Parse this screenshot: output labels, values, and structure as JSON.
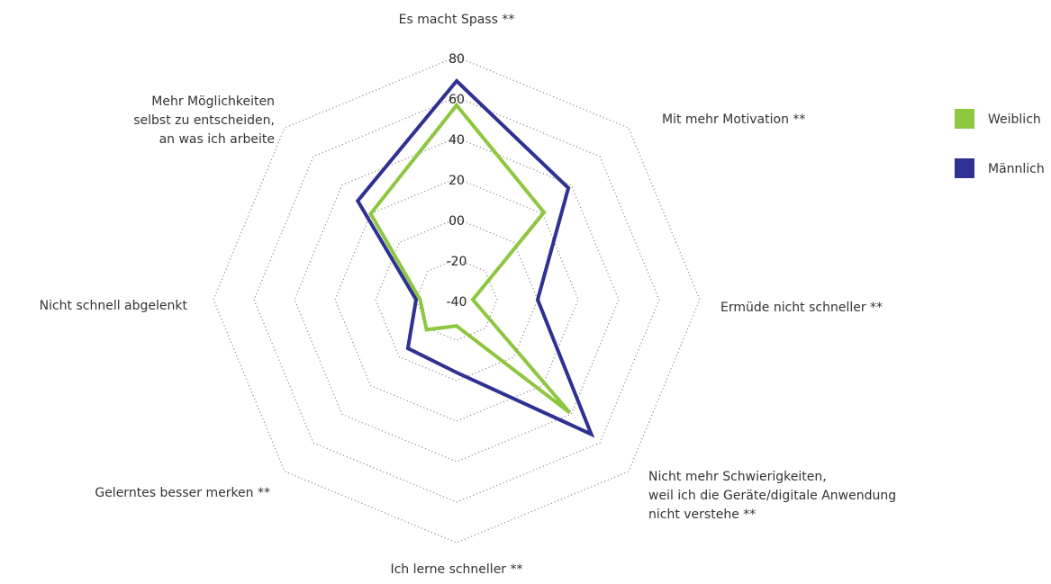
{
  "chart_data": {
    "type": "radar",
    "categories": [
      "Es macht Spass **",
      "Mit mehr Motivation **",
      "Ermüde nicht schneller **",
      "Nicht mehr Schwierigkeiten,\nweil ich die Geräte/digitale Anwendung\nnicht verstehe **",
      "Ich lerne schneller **",
      "Gelerntes besser merken **",
      "Nicht schnell abgelenkt",
      "Mehr Möglichkeiten\nselbst zu entscheiden,\nan was ich arbeite"
    ],
    "series": [
      {
        "name": "Weiblich",
        "color": "#8dc63f",
        "values": [
          56,
          21,
          -32,
          39,
          -27,
          -19,
          -22,
          20
        ]
      },
      {
        "name": "Männlich",
        "color": "#2e3192",
        "values": [
          68,
          38,
          0,
          54,
          -4,
          -6,
          -20,
          29
        ]
      }
    ],
    "ylim": [
      -40,
      80
    ],
    "yticks": [
      -40,
      -20,
      {
        "value": 0,
        "label": "00"
      },
      20,
      40,
      60,
      80
    ],
    "grid": true,
    "legend": "right"
  }
}
